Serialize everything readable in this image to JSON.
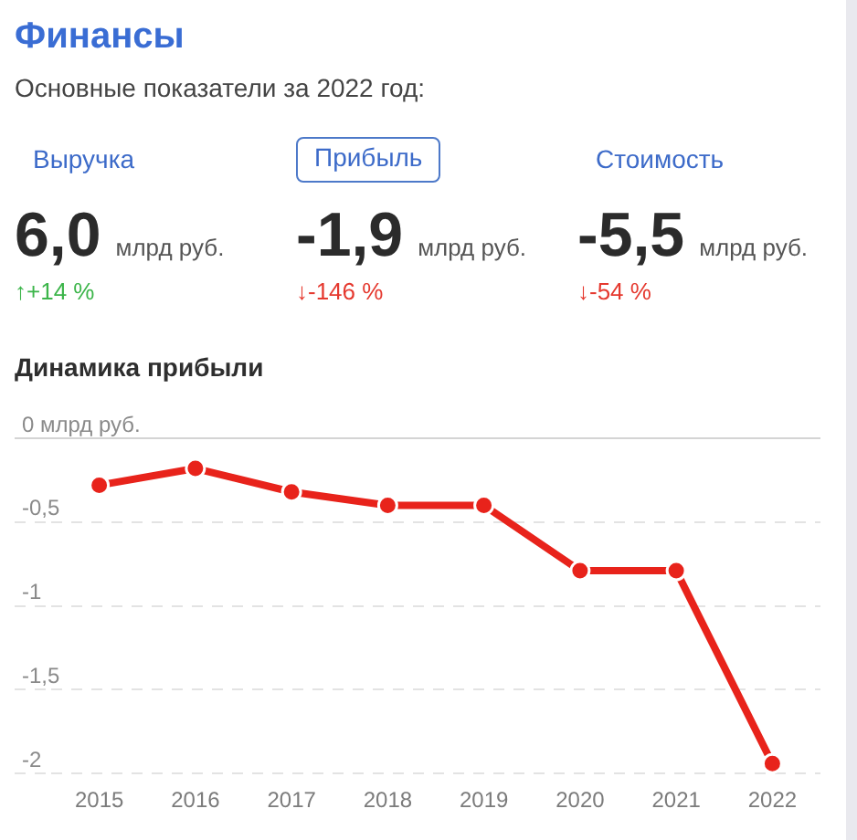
{
  "chart_data": [
    {
      "type": "other",
      "title": "Финансы",
      "subtitle": "Основные показатели за 2022 год:",
      "categories": [
        "Выручка",
        "Прибыль",
        "Стоимость"
      ],
      "value_labels": [
        "6,0",
        "-1,9",
        "-5,5"
      ],
      "ylabel": "млрд руб.",
      "annotations": [
        "↑+14 %",
        "↓-146 %",
        "↓-54 %"
      ],
      "colors": [
        "#3cb54a",
        "#e5392f",
        "#e5392f"
      ]
    },
    {
      "type": "line",
      "title": "Динамика прибыли",
      "categories": [
        "2015",
        "2016",
        "2017",
        "2018",
        "2019",
        "2020",
        "2021",
        "2022"
      ],
      "values": [
        -0.28,
        -0.18,
        -0.32,
        -0.4,
        -0.4,
        -0.79,
        -0.79,
        -1.94
      ],
      "color": "#e8231b",
      "ylim": [
        -2,
        0
      ],
      "yticks": [
        {
          "value": 0,
          "label": "0 млрд руб."
        },
        {
          "value": -0.5,
          "label": "-0,5"
        },
        {
          "value": -1,
          "label": "-1"
        },
        {
          "value": -1.5,
          "label": "-1,5"
        },
        {
          "value": -2,
          "label": "-2"
        }
      ],
      "grid": "y",
      "legend": false,
      "marker": "circle",
      "line_style": "solid"
    }
  ]
}
